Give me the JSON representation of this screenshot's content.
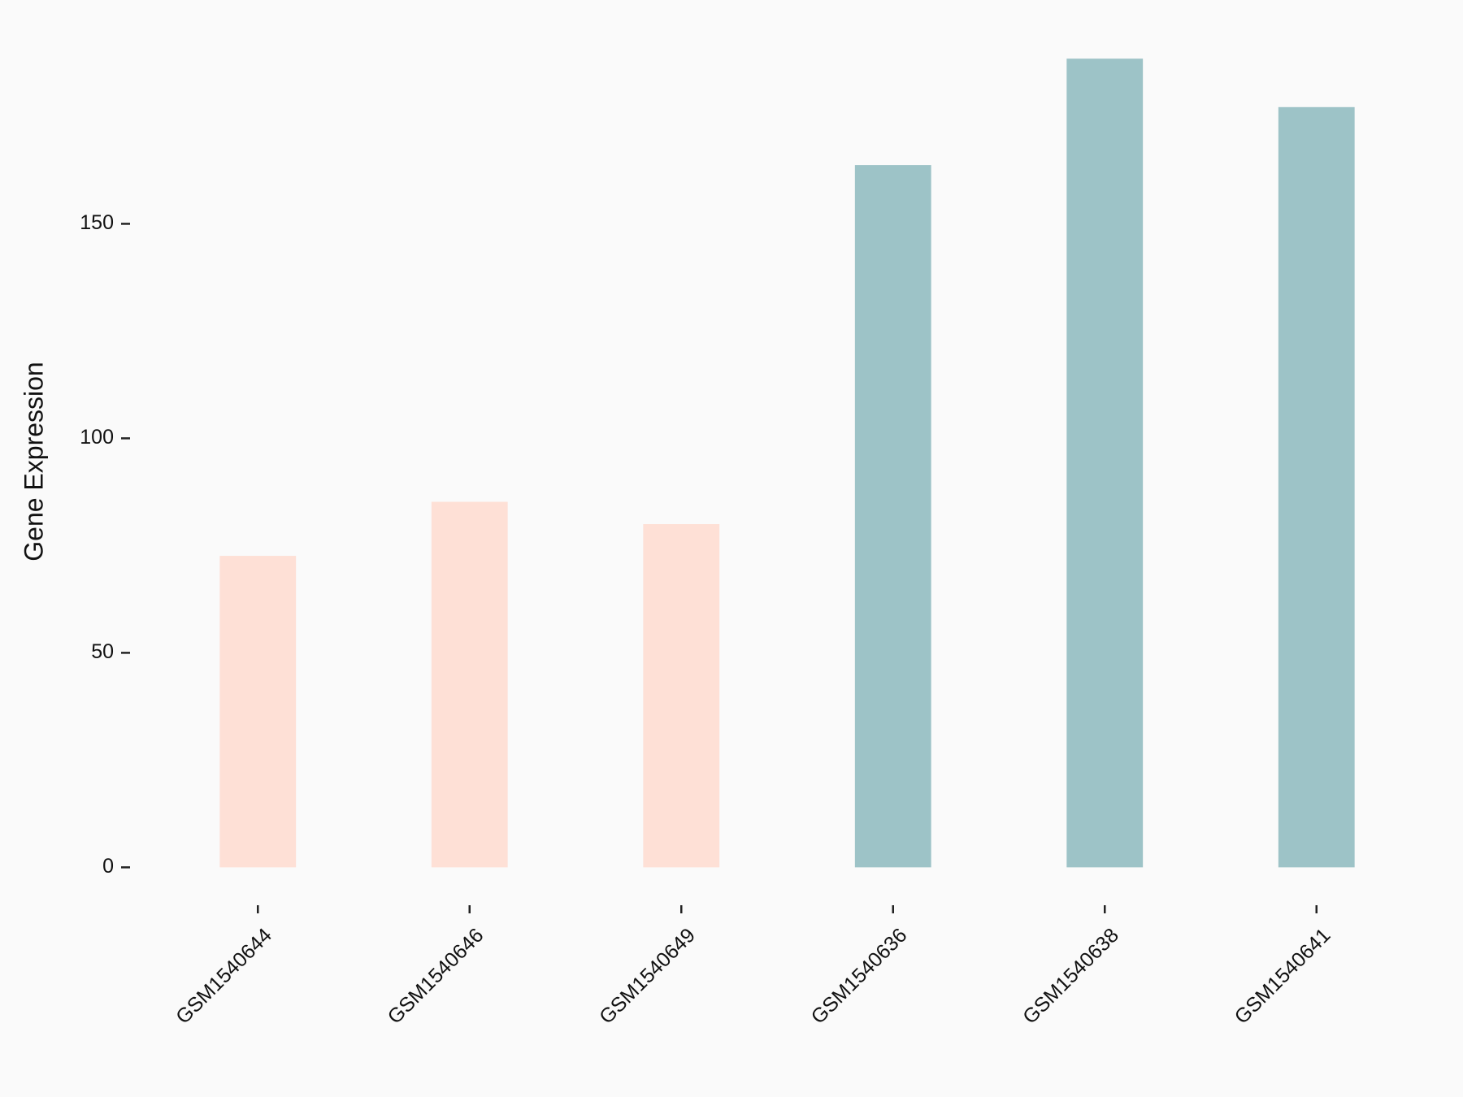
{
  "chart_data": {
    "type": "bar",
    "y_label": "Gene Expression",
    "categories": [
      "GSM1540644",
      "GSM1540646",
      "GSM1540649",
      "GSM1540636",
      "GSM1540638",
      "GSM1540641"
    ],
    "values": [
      72.6,
      85.2,
      80,
      163.7,
      188.5,
      177.2
    ],
    "colors": [
      "#fee0d6",
      "#fee0d6",
      "#fee0d6",
      "#9dc3c7",
      "#9dc3c7",
      "#9dc3c7"
    ],
    "ylim": [
      -9.4,
      198
    ],
    "yticks": [
      0,
      50,
      100,
      150
    ]
  }
}
